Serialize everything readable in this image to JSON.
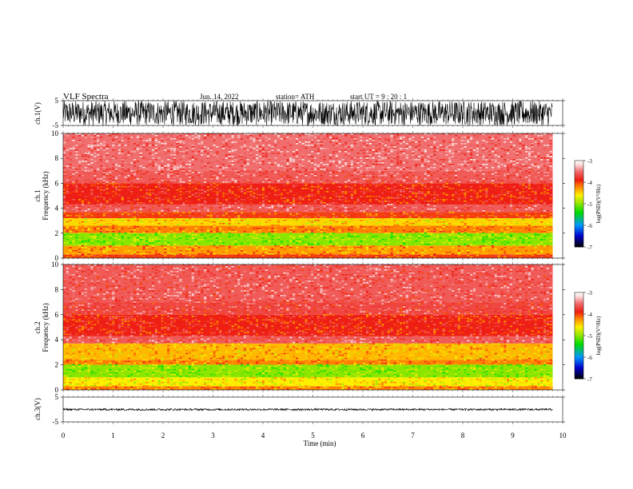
{
  "header": {
    "title": "VLF  Spectra",
    "date": "Jun. 14, 2022",
    "station": "station= ATH",
    "start": "start  UT  =    9  : 20 : 1"
  },
  "chart_data": [
    {
      "type": "line",
      "panel": "ch1-waveform",
      "ylabel": "ch.1(V)",
      "ylim": [
        -5,
        5
      ],
      "yticks": [
        "5",
        "-5"
      ],
      "xlim": [
        0,
        10
      ],
      "amplitude_range": [
        -5,
        5
      ],
      "color": "#000000"
    },
    {
      "type": "heatmap",
      "panel": "ch1-spectrogram",
      "ylabel_top": "ch.1",
      "ylabel": "Frequency  (kHz)",
      "ylim": [
        0,
        10
      ],
      "yticks": [
        "0",
        "2",
        "4",
        "6",
        "8",
        "10"
      ],
      "xlim": [
        0,
        10
      ],
      "data_end_min": 9.8,
      "bands_khz": [
        {
          "from": 0.0,
          "to": 0.3,
          "level": -4.0
        },
        {
          "from": 0.3,
          "to": 1.0,
          "level": -4.3
        },
        {
          "from": 1.0,
          "to": 2.0,
          "level": -5.0
        },
        {
          "from": 2.0,
          "to": 2.6,
          "level": -4.2
        },
        {
          "from": 2.6,
          "to": 3.2,
          "level": -4.5
        },
        {
          "from": 3.2,
          "to": 3.7,
          "level": -4.0
        },
        {
          "from": 3.7,
          "to": 4.3,
          "level": -3.6
        },
        {
          "from": 4.3,
          "to": 6.0,
          "level": -3.9
        },
        {
          "from": 6.0,
          "to": 7.0,
          "level": -3.6
        },
        {
          "from": 7.0,
          "to": 10.0,
          "level": -3.5
        }
      ],
      "colorbar": {
        "label": "log(PSD)(V²/Hz)",
        "ticks": [
          "-3",
          "-4",
          "-5",
          "-6",
          "-7"
        ],
        "range": [
          -7,
          -3
        ]
      }
    },
    {
      "type": "heatmap",
      "panel": "ch2-spectrogram",
      "ylabel_top": "ch.2",
      "ylabel": "Frequency  (kHz)",
      "ylim": [
        0,
        10
      ],
      "yticks": [
        "0",
        "2",
        "4",
        "6",
        "8",
        "10"
      ],
      "xlim": [
        0,
        10
      ],
      "data_end_min": 9.8,
      "bands_khz": [
        {
          "from": 0.0,
          "to": 0.3,
          "level": -4.2
        },
        {
          "from": 0.3,
          "to": 1.0,
          "level": -4.6
        },
        {
          "from": 1.0,
          "to": 2.0,
          "level": -5.0
        },
        {
          "from": 2.0,
          "to": 2.4,
          "level": -4.2
        },
        {
          "from": 2.4,
          "to": 3.7,
          "level": -4.4
        },
        {
          "from": 3.7,
          "to": 4.3,
          "level": -3.6
        },
        {
          "from": 4.3,
          "to": 6.0,
          "level": -3.9
        },
        {
          "from": 6.0,
          "to": 7.0,
          "level": -3.7
        },
        {
          "from": 7.0,
          "to": 10.0,
          "level": -3.6
        }
      ],
      "colorbar": {
        "label": "log(PSD)(V²/Hz)",
        "ticks": [
          "-3",
          "-4",
          "-5",
          "-6",
          "-7"
        ],
        "range": [
          -7,
          -3
        ]
      }
    },
    {
      "type": "line",
      "panel": "ch3-waveform",
      "ylabel": "ch.3(V)",
      "ylim": [
        -5,
        5
      ],
      "yticks": [
        "5",
        "-5"
      ],
      "xlim": [
        0,
        10
      ],
      "amplitude_range": [
        -0.4,
        0.4
      ],
      "color": "#000000"
    }
  ],
  "xaxis": {
    "label": "Time  (min)",
    "ticks": [
      "0",
      "1",
      "2",
      "3",
      "4",
      "5",
      "6",
      "7",
      "8",
      "9",
      "10"
    ]
  }
}
